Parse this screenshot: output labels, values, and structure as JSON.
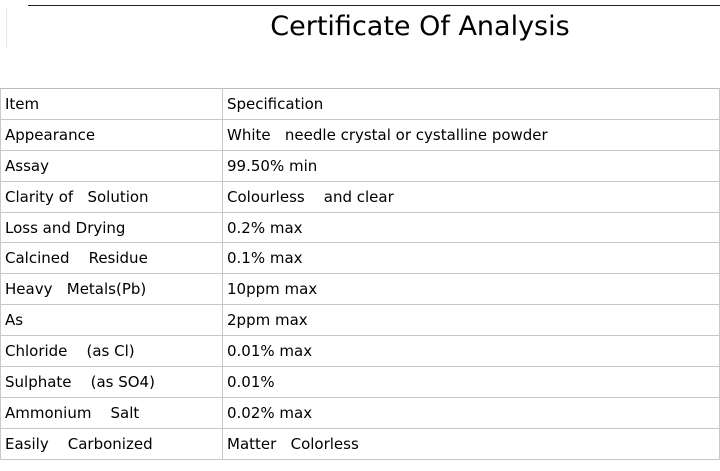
{
  "title": "Certificate Of Analysis",
  "table": {
    "header": {
      "item": "Item",
      "specification": "Specification"
    },
    "rows": [
      {
        "item": "Appearance",
        "specification": "White   needle crystal or cystalline powder"
      },
      {
        "item": "Assay",
        "specification": "99.50% min"
      },
      {
        "item": "Clarity of   Solution",
        "specification": "Colourless    and clear"
      },
      {
        "item": "Loss and Drying",
        "specification": "0.2% max"
      },
      {
        "item": "Calcined    Residue",
        "specification": "0.1% max"
      },
      {
        "item": "Heavy   Metals(Pb)",
        "specification": "10ppm max"
      },
      {
        "item": "As",
        "specification": "2ppm max"
      },
      {
        "item": "Chloride    (as Cl)",
        "specification": "0.01% max"
      },
      {
        "item": "Sulphate    (as SO4)",
        "specification": "0.01%"
      },
      {
        "item": "Ammonium    Salt",
        "specification": "0.02% max"
      },
      {
        "item": "Easily    Carbonized",
        "specification": "Matter   Colorless"
      }
    ]
  }
}
